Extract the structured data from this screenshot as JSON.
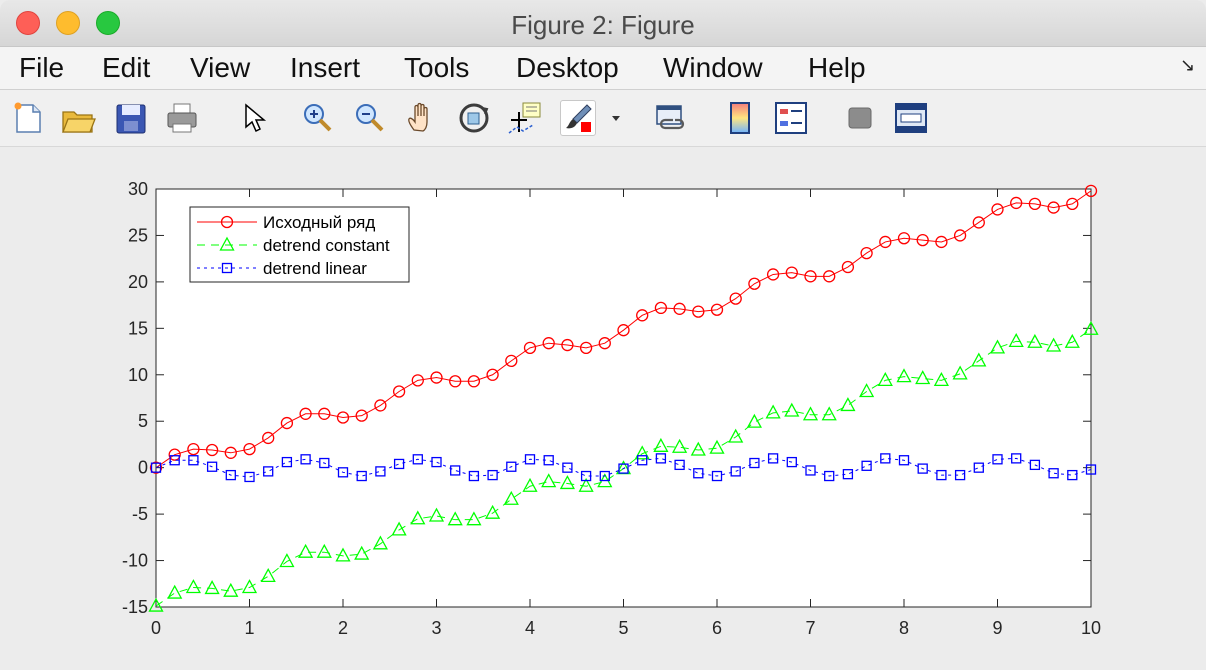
{
  "window": {
    "title": "Figure 2: Figure"
  },
  "menu": [
    "File",
    "Edit",
    "View",
    "Insert",
    "Tools",
    "Desktop",
    "Window",
    "Help"
  ],
  "menu_overflow_icon": "dock-arrow-icon",
  "toolbar": [
    "new-figure-icon",
    "open-file-icon",
    "save-icon",
    "print-icon",
    "edit-plot-cursor-icon",
    "zoom-in-icon",
    "zoom-out-icon",
    "pan-hand-icon",
    "rotate-3d-icon",
    "data-cursor-icon",
    "brush-icon",
    "brush-dropdown-icon",
    "link-plot-icon",
    "colorbar-icon",
    "legend-icon",
    "hide-plot-tools-icon",
    "show-plot-tools-icon"
  ],
  "colors": {
    "series1": "#ff0000",
    "series2": "#00ff00",
    "series3": "#0000ff"
  },
  "chart_data": {
    "type": "line",
    "title": "",
    "xlabel": "",
    "ylabel": "",
    "xlim": [
      0,
      10
    ],
    "ylim": [
      -15,
      30
    ],
    "xticks": [
      0,
      1,
      2,
      3,
      4,
      5,
      6,
      7,
      8,
      9,
      10
    ],
    "yticks": [
      -15,
      -10,
      -5,
      0,
      5,
      10,
      15,
      20,
      25,
      30
    ],
    "grid": false,
    "legend_position": "top-left",
    "x": [
      0,
      0.2,
      0.4,
      0.6,
      0.8,
      1.0,
      1.2,
      1.4,
      1.6,
      1.8,
      2.0,
      2.2,
      2.4,
      2.6,
      2.8,
      3.0,
      3.2,
      3.4,
      3.6,
      3.8,
      4.0,
      4.2,
      4.4,
      4.6,
      4.8,
      5.0,
      5.2,
      5.4,
      5.6,
      5.8,
      6.0,
      6.2,
      6.4,
      6.6,
      6.8,
      7.0,
      7.2,
      7.4,
      7.6,
      7.8,
      8.0,
      8.2,
      8.4,
      8.6,
      8.8,
      9.0,
      9.2,
      9.4,
      9.6,
      9.8,
      10.0
    ],
    "series": [
      {
        "name": "Исходный ряд",
        "color": "#ff0000",
        "marker": "circle",
        "dash": "solid",
        "values": [
          0.0,
          1.4,
          2.0,
          1.9,
          1.6,
          2.0,
          3.2,
          4.8,
          5.8,
          5.8,
          5.4,
          5.6,
          6.7,
          8.2,
          9.4,
          9.7,
          9.3,
          9.3,
          10.0,
          11.5,
          12.9,
          13.4,
          13.2,
          12.9,
          13.4,
          14.8,
          16.4,
          17.2,
          17.1,
          16.8,
          17.0,
          18.2,
          19.8,
          20.8,
          21.0,
          20.6,
          20.6,
          21.6,
          23.1,
          24.3,
          24.7,
          24.5,
          24.3,
          25.0,
          26.4,
          27.8,
          28.5,
          28.4,
          28.0,
          28.4,
          29.8
        ]
      },
      {
        "name": "detrend constant",
        "color": "#00ff00",
        "marker": "triangle",
        "dash": "dashed",
        "values": [
          -14.9,
          -13.5,
          -12.9,
          -13.0,
          -13.3,
          -12.9,
          -11.7,
          -10.1,
          -9.1,
          -9.1,
          -9.5,
          -9.3,
          -8.2,
          -6.7,
          -5.5,
          -5.2,
          -5.6,
          -5.6,
          -4.9,
          -3.4,
          -2.0,
          -1.5,
          -1.7,
          -2.0,
          -1.5,
          -0.1,
          1.5,
          2.3,
          2.2,
          1.9,
          2.1,
          3.3,
          4.9,
          5.9,
          6.1,
          5.7,
          5.7,
          6.7,
          8.2,
          9.4,
          9.8,
          9.6,
          9.4,
          10.1,
          11.5,
          12.9,
          13.6,
          13.5,
          13.1,
          13.5,
          14.9
        ]
      },
      {
        "name": "detrend linear",
        "color": "#0000ff",
        "marker": "square",
        "dash": "dotted",
        "values": [
          -0.0,
          0.8,
          0.8,
          0.1,
          -0.8,
          -1.0,
          -0.4,
          0.6,
          0.9,
          0.5,
          -0.5,
          -0.9,
          -0.4,
          0.4,
          0.9,
          0.6,
          -0.3,
          -0.9,
          -0.8,
          0.1,
          0.9,
          0.8,
          -0.0,
          -0.9,
          -0.9,
          -0.1,
          0.8,
          1.0,
          0.3,
          -0.6,
          -0.9,
          -0.4,
          0.5,
          1.0,
          0.6,
          -0.3,
          -0.9,
          -0.7,
          0.2,
          1.0,
          0.8,
          -0.1,
          -0.8,
          -0.8,
          0.0,
          0.9,
          1.0,
          0.3,
          -0.6,
          -0.8,
          -0.2
        ]
      }
    ]
  }
}
